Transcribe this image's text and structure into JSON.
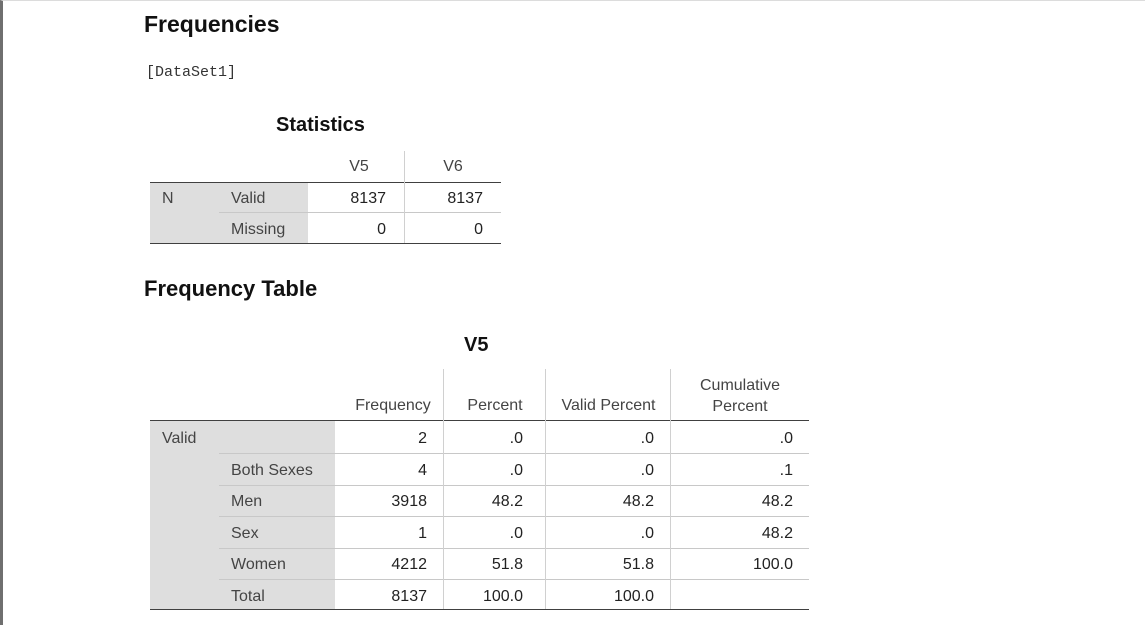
{
  "page": {
    "title": "Frequencies",
    "dataset": "[DataSet1]"
  },
  "statistics": {
    "title": "Statistics",
    "columns": [
      "V5",
      "V6"
    ],
    "group_label": "N",
    "rows": [
      {
        "label": "Valid",
        "values": [
          "8137",
          "8137"
        ]
      },
      {
        "label": "Missing",
        "values": [
          "0",
          "0"
        ]
      }
    ]
  },
  "frequency_section": {
    "title": "Frequency Table"
  },
  "v5_table": {
    "title": "V5",
    "columns": [
      "Frequency",
      "Percent",
      "Valid Percent",
      "Cumulative Percent"
    ],
    "cumulative_line1": "Cumulative",
    "cumulative_line2": "Percent",
    "group_label": "Valid",
    "rows": [
      {
        "label": "",
        "values": [
          "2",
          ".0",
          ".0",
          ".0"
        ]
      },
      {
        "label": "Both Sexes",
        "values": [
          "4",
          ".0",
          ".0",
          ".1"
        ]
      },
      {
        "label": "Men",
        "values": [
          "3918",
          "48.2",
          "48.2",
          "48.2"
        ]
      },
      {
        "label": "Sex",
        "values": [
          "1",
          ".0",
          ".0",
          "48.2"
        ]
      },
      {
        "label": "Women",
        "values": [
          "4212",
          "51.8",
          "51.8",
          "100.0"
        ]
      },
      {
        "label": "Total",
        "values": [
          "8137",
          "100.0",
          "100.0",
          ""
        ]
      }
    ]
  }
}
